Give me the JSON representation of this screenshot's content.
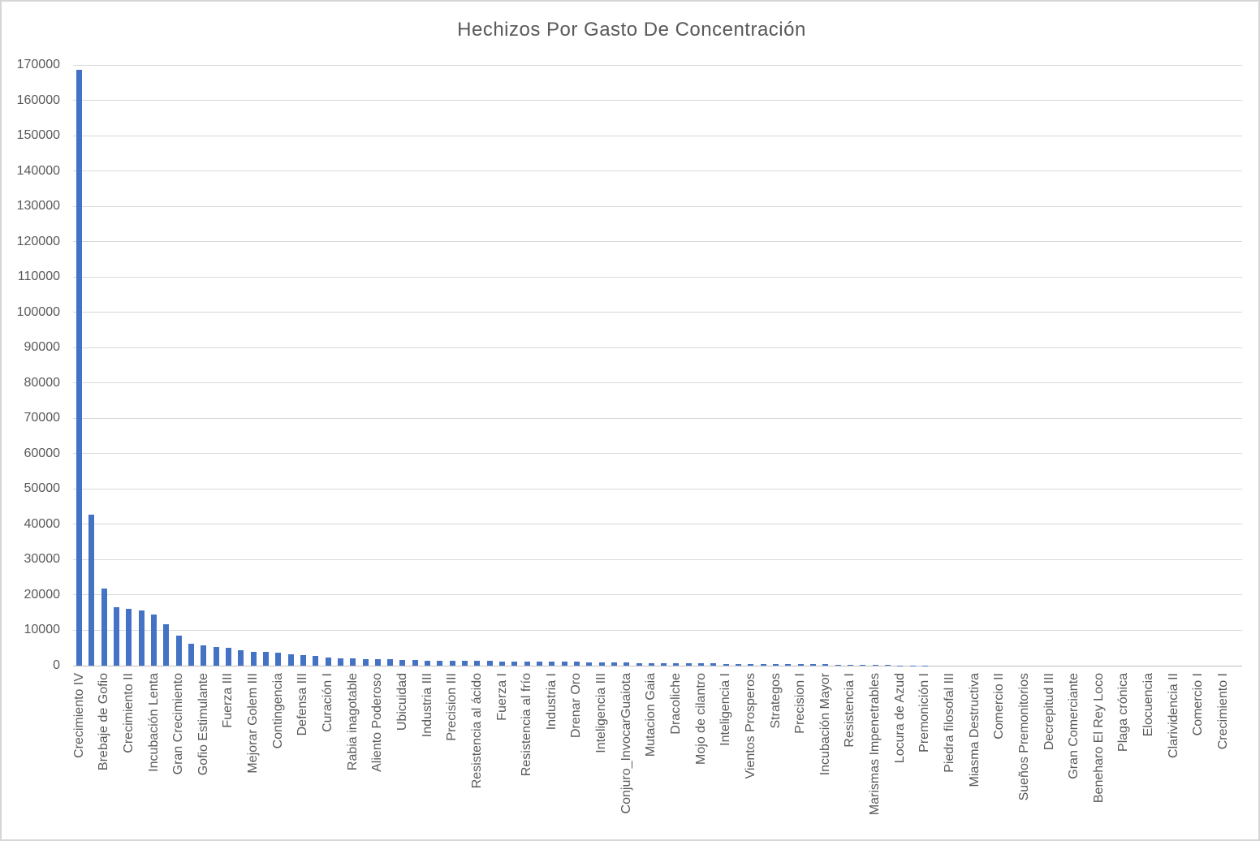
{
  "chart_data": {
    "type": "bar",
    "title": "Hechizos Por Gasto De Concentración",
    "xlabel": "",
    "ylabel": "",
    "ylim": [
      0,
      170000
    ],
    "ytick_step": 10000,
    "ytick_labels": [
      "0",
      "10000",
      "20000",
      "30000",
      "40000",
      "50000",
      "60000",
      "70000",
      "80000",
      "90000",
      "100000",
      "110000",
      "120000",
      "130000",
      "140000",
      "150000",
      "160000",
      "170000"
    ],
    "grid": true,
    "legend": false,
    "bar_color": "#4472C4",
    "gridline_color": "#D9D9D9",
    "axis_color": "#BFBFBF",
    "text_color": "#595959",
    "label_every_nth_bar": 2,
    "category_labels": [
      "Crecimiento IV",
      "Brebaje de Gofio",
      "Crecimiento II",
      "Incubación Lenta",
      "Gran Crecimiento",
      "Gofio Estimulante",
      "Fuerza III",
      "Mejorar Golem III",
      "Contingencia",
      "Defensa III",
      "Curación I",
      "Rabia inagotable",
      "Aliento Poderoso",
      "Ubicuidad",
      "Industria III",
      "Precision III",
      "Resistencia al ácido",
      "Fuerza I",
      "Resistencia al frío",
      "Industria I",
      "Drenar Oro",
      "Inteligencia III",
      "Conjuro_InvocarGuaiota",
      "Mutacion Gaia",
      "Dracoliche",
      "Mojo de cilantro",
      "Inteligencia I",
      "Vientos Prosperos",
      "Strategos",
      "Precision I",
      "Incubación Mayor",
      "Resistencia I",
      "Marismas Impenetrables",
      "Locura de Azud",
      "Premonición I",
      "Piedra filosofal III",
      "Miasma Destructiva",
      "Comercio II",
      "Sueños Premonitorios",
      "Decrepitud III",
      "Gran Comerciante",
      "Beneharo El Rey Loco",
      "Plaga crónica",
      "Elocuencia",
      "Clarividencia II",
      "Comercio I",
      "Crecimiento I"
    ],
    "values": [
      168600,
      42800,
      21800,
      16600,
      16000,
      15600,
      14400,
      11800,
      8400,
      6300,
      5700,
      5250,
      4950,
      4300,
      4000,
      3800,
      3650,
      3270,
      2950,
      2700,
      2350,
      2150,
      2100,
      1950,
      1900,
      1750,
      1600,
      1500,
      1450,
      1400,
      1400,
      1450,
      1300,
      1300,
      1250,
      1200,
      1150,
      1150,
      1100,
      1100,
      1050,
      1000,
      950,
      900,
      850,
      800,
      750,
      720,
      750,
      700,
      620,
      580,
      550,
      520,
      500,
      470,
      440,
      420,
      400,
      380,
      350,
      330,
      300,
      140,
      130,
      120,
      110,
      100,
      95,
      90,
      85,
      80,
      75,
      70,
      65,
      60,
      55,
      50,
      45,
      40,
      35,
      30,
      28,
      25,
      22,
      20,
      18,
      15,
      12,
      10,
      8,
      5,
      3,
      0
    ]
  }
}
